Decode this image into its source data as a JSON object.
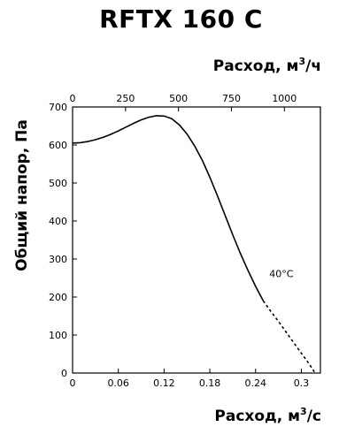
{
  "chart_data": {
    "type": "line",
    "title": "RFTX 160 C",
    "xlabel_bottom": "Расход, м",
    "xlabel_bottom_unit": "/с",
    "xlabel_top": "Расход, м",
    "xlabel_top_unit": "/ч",
    "unit_exponent": "3",
    "ylabel": "Общий напор, Па",
    "xlim": [
      0,
      0.325
    ],
    "ylim": [
      0,
      700
    ],
    "x2lim": [
      0,
      1170
    ],
    "x_ticks": [
      {
        "value": 0,
        "label": "0"
      },
      {
        "value": 0.06,
        "label": "0.06"
      },
      {
        "value": 0.12,
        "label": "0.12"
      },
      {
        "value": 0.18,
        "label": "0.18"
      },
      {
        "value": 0.24,
        "label": "0.24"
      },
      {
        "value": 0.3,
        "label": "0.3"
      }
    ],
    "x2_ticks": [
      {
        "value": 0,
        "label": "0"
      },
      {
        "value": 250,
        "label": "250"
      },
      {
        "value": 500,
        "label": "500"
      },
      {
        "value": 750,
        "label": "750"
      },
      {
        "value": 1000,
        "label": "1000"
      }
    ],
    "y_ticks": [
      {
        "value": 0,
        "label": "0"
      },
      {
        "value": 100,
        "label": "100"
      },
      {
        "value": 200,
        "label": "200"
      },
      {
        "value": 300,
        "label": "300"
      },
      {
        "value": 400,
        "label": "400"
      },
      {
        "value": 500,
        "label": "500"
      },
      {
        "value": 600,
        "label": "600"
      },
      {
        "value": 700,
        "label": "700"
      }
    ],
    "grid": false,
    "series": [
      {
        "style": "solid",
        "x": [
          0,
          0.01,
          0.02,
          0.03,
          0.04,
          0.05,
          0.06,
          0.07,
          0.08,
          0.09,
          0.1,
          0.11,
          0.12,
          0.13,
          0.14,
          0.15,
          0.16,
          0.17,
          0.18,
          0.19,
          0.2,
          0.21,
          0.22,
          0.23,
          0.24,
          0.25
        ],
        "y": [
          605,
          606,
          609,
          614,
          620,
          628,
          637,
          647,
          657,
          666,
          673,
          677,
          676,
          669,
          653,
          629,
          598,
          560,
          515,
          466,
          415,
          364,
          315,
          270,
          228,
          190
        ]
      },
      {
        "style": "dashed",
        "x": [
          0.25,
          0.26,
          0.27,
          0.28,
          0.29,
          0.3,
          0.31,
          0.318
        ],
        "y": [
          190,
          162,
          136,
          108,
          80,
          52,
          25,
          0
        ]
      }
    ],
    "annotations": [
      {
        "text": "40°C",
        "x": 0.258,
        "y": 262
      }
    ]
  }
}
